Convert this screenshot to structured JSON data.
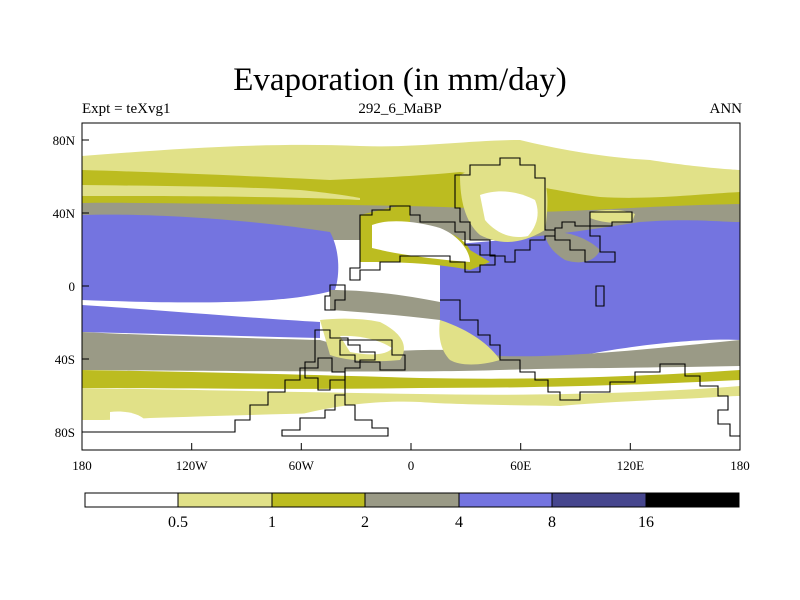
{
  "title": "Evaporation (in mm/day)",
  "left_label": "Expt = teXvg1",
  "center_label": "292_6_MaBP",
  "right_label": "ANN",
  "lon_ticks": [
    "180",
    "120W",
    "60W",
    "0",
    "60E",
    "120E",
    "180"
  ],
  "lat_ticks": [
    "80N",
    "40N",
    "0",
    "40S",
    "80S"
  ],
  "colorbar": {
    "colors": [
      "#ffffff",
      "#e1e188",
      "#bcbc20",
      "#9a9a86",
      "#7474e0",
      "#46468e",
      "#000000"
    ],
    "labels": [
      "0.5",
      "1",
      "2",
      "4",
      "8",
      "16"
    ]
  },
  "colors": {
    "white": "#ffffff",
    "lightyellow": "#e1e188",
    "olive": "#bcbc20",
    "gray": "#9a9a86",
    "blue": "#7474e0",
    "coastline": "#000000"
  }
}
